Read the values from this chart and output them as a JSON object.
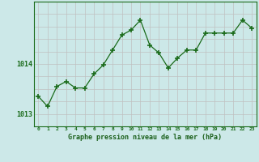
{
  "x": [
    0,
    1,
    2,
    3,
    4,
    5,
    6,
    7,
    8,
    9,
    10,
    11,
    12,
    13,
    14,
    15,
    16,
    17,
    18,
    19,
    20,
    21,
    22,
    23
  ],
  "y": [
    1013.35,
    1013.15,
    1013.55,
    1013.65,
    1013.52,
    1013.52,
    1013.8,
    1013.98,
    1014.28,
    1014.58,
    1014.68,
    1014.88,
    1014.38,
    1014.22,
    1013.92,
    1014.12,
    1014.28,
    1014.28,
    1014.62,
    1014.62,
    1014.62,
    1014.62,
    1014.88,
    1014.72
  ],
  "line_color": "#1a6b1a",
  "marker_color": "#1a6b1a",
  "bg_color": "#cce8e8",
  "grid_color_v": "#c0c0c0",
  "grid_color_h": "#c0c0c0",
  "axis_color": "#1a6b1a",
  "title": "Graphe pression niveau de la mer (hPa)",
  "title_color": "#1a5f1a",
  "ylim": [
    1012.75,
    1015.25
  ],
  "yticks": [
    1013,
    1014
  ],
  "xlim": [
    -0.5,
    23.5
  ],
  "xticks": [
    0,
    1,
    2,
    3,
    4,
    5,
    6,
    7,
    8,
    9,
    10,
    11,
    12,
    13,
    14,
    15,
    16,
    17,
    18,
    19,
    20,
    21,
    22,
    23
  ],
  "grid_hstep": 0.25
}
